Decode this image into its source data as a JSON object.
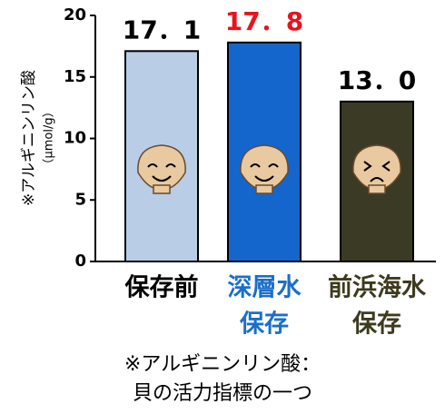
{
  "chart_data": {
    "type": "bar",
    "y_label": [
      "※アルギニンリン酸",
      "（μmol/g）"
    ],
    "categories": [
      [
        "保存前"
      ],
      [
        "深層水",
        "保存"
      ],
      [
        "前浜海水",
        "保存"
      ]
    ],
    "category_colors": [
      "#000000",
      "#1a6fc9",
      "#3d3a1e"
    ],
    "values": [
      17.1,
      17.8,
      13.0
    ],
    "value_labels": [
      "17．1",
      "17．8",
      "13．0"
    ],
    "value_label_colors": [
      "#000000",
      "#e8141c",
      "#000000"
    ],
    "colors": [
      "#b9cde6",
      "#1466cc",
      "#3b3a25"
    ],
    "ylim": [
      0,
      20
    ],
    "yticks": [
      0,
      5,
      10,
      15,
      20
    ],
    "note": [
      "※アルギニンリン酸：",
      "貝の活力指標の一つ"
    ]
  }
}
